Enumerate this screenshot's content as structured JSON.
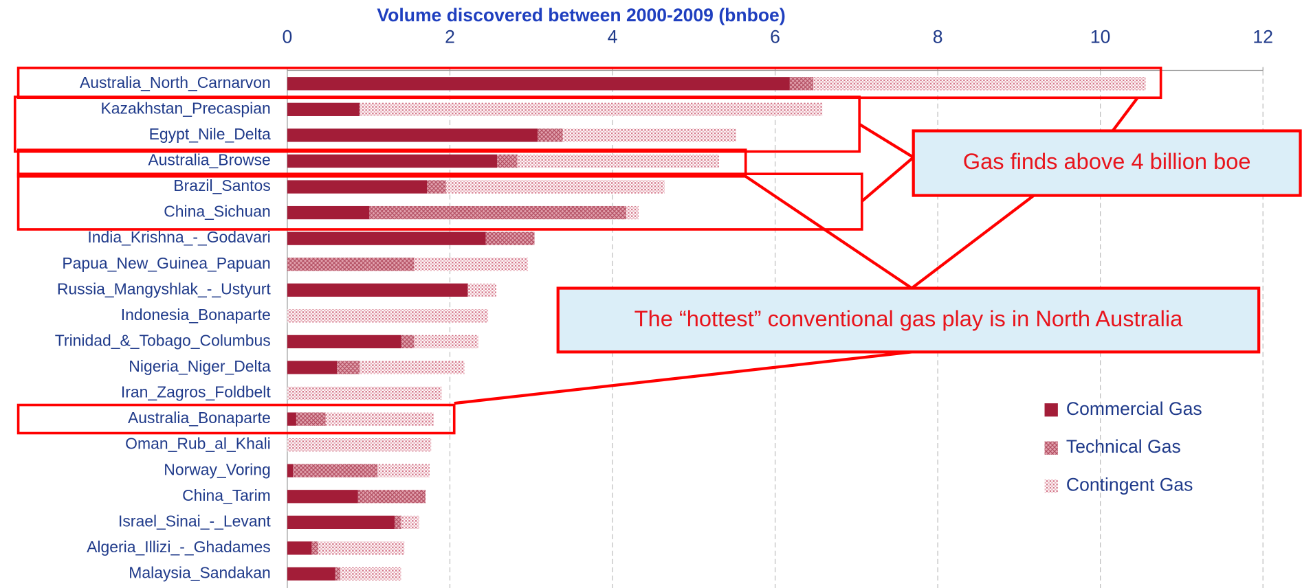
{
  "chart_data": {
    "type": "stacked_barh",
    "title": "Volume discovered  between 2000-2009 (bnboe)",
    "categories": [
      "Australia_North_Carnarvon",
      "Kazakhstan_Precaspian",
      "Egypt_Nile_Delta",
      "Australia_Browse",
      "Brazil_Santos",
      "China_Sichuan",
      "India_Krishna_-_Godavari",
      "Papua_New_Guinea_Papuan",
      "Russia_Mangyshlak_-_Ustyurt",
      "Indonesia_Bonaparte",
      "Trinidad_&_Tobago_Columbus",
      "Nigeria_Niger_Delta",
      "Iran_Zagros_Foldbelt",
      "Australia_Bonaparte",
      "Oman_Rub_al_Khali",
      "Norway_Voring",
      "China_Tarim",
      "Israel_Sinai_-_Levant",
      "Algeria_Illizi_-_Ghadames",
      "Malaysia_Sandakan"
    ],
    "series": [
      {
        "name": "Commercial Gas",
        "color": "#a31d38",
        "values": [
          6.18,
          0.89,
          3.08,
          2.58,
          1.72,
          1.01,
          2.44,
          0,
          2.22,
          0,
          1.4,
          0.61,
          0,
          0.11,
          0,
          0.07,
          0.87,
          1.32,
          0.3,
          0.59
        ]
      },
      {
        "name": "Technical Gas",
        "color": "#c97080",
        "values": [
          0.29,
          0,
          0.31,
          0.25,
          0.23,
          3.16,
          0.6,
          1.56,
          0,
          0,
          0.16,
          0.28,
          0,
          0.36,
          0,
          1.04,
          0.83,
          0.08,
          0.08,
          0.06
        ]
      },
      {
        "name": "Contingent Gas",
        "color": "#e6a6b1",
        "values": [
          4.09,
          5.69,
          2.13,
          2.48,
          2.69,
          0.15,
          0,
          1.4,
          0.35,
          2.47,
          0.79,
          1.29,
          1.9,
          1.33,
          1.77,
          0.64,
          0,
          0.22,
          1.06,
          0.75
        ]
      }
    ],
    "xlim": [
      0,
      12
    ],
    "xticks": [
      0,
      2,
      4,
      6,
      8,
      10,
      12
    ],
    "grid": true,
    "annotations": [
      "Gas finds above 4 billion boe",
      "The “hottest” conventional gas play is in North Australia"
    ]
  }
}
